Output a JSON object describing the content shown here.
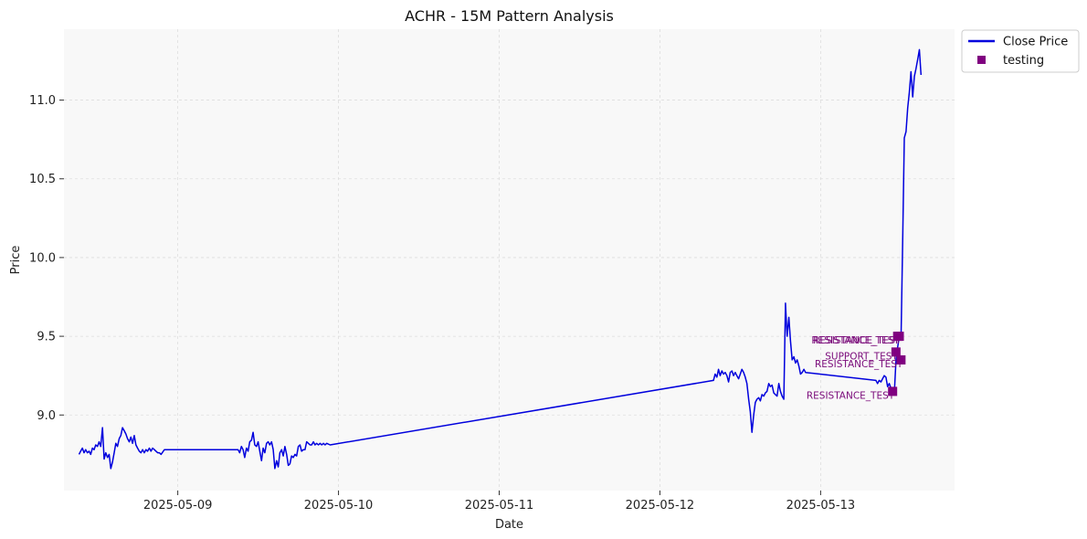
{
  "chart_data": {
    "type": "line",
    "title": "ACHR - 15M Pattern Analysis",
    "xlabel": "Date",
    "ylabel": "Price",
    "xlim": [
      "2025-05-08 07:00",
      "2025-05-13 20:00"
    ],
    "ylim": [
      8.52,
      11.45
    ],
    "x_ticks": [
      "2025-05-09",
      "2025-05-10",
      "2025-05-11",
      "2025-05-12",
      "2025-05-13"
    ],
    "y_ticks": [
      9.0,
      9.5,
      10.0,
      10.5,
      11.0
    ],
    "y_tick_labels": [
      "9.0",
      "9.5",
      "10.0",
      "10.5",
      "11.0"
    ],
    "grid": true,
    "legend_position": "upper-right-outside",
    "colors": {
      "line": "#0000dd",
      "marker": "#800080",
      "annotation": "#7a0a7a",
      "plot_bg": "#f8f8f8",
      "grid": "#dddddd"
    },
    "series": [
      {
        "name": "Close Price",
        "type": "line",
        "points": [
          [
            "2025-05-08 09:15",
            8.75
          ],
          [
            "2025-05-08 09:30",
            8.77
          ],
          [
            "2025-05-08 09:45",
            8.79
          ],
          [
            "2025-05-08 10:00",
            8.76
          ],
          [
            "2025-05-08 10:15",
            8.78
          ],
          [
            "2025-05-08 10:30",
            8.76
          ],
          [
            "2025-05-08 10:45",
            8.77
          ],
          [
            "2025-05-08 11:00",
            8.75
          ],
          [
            "2025-05-08 11:15",
            8.79
          ],
          [
            "2025-05-08 11:30",
            8.78
          ],
          [
            "2025-05-08 11:45",
            8.81
          ],
          [
            "2025-05-08 12:00",
            8.8
          ],
          [
            "2025-05-08 12:15",
            8.83
          ],
          [
            "2025-05-08 12:30",
            8.8
          ],
          [
            "2025-05-08 12:45",
            8.92
          ],
          [
            "2025-05-08 13:00",
            8.72
          ],
          [
            "2025-05-08 13:15",
            8.76
          ],
          [
            "2025-05-08 13:30",
            8.73
          ],
          [
            "2025-05-08 13:45",
            8.75
          ],
          [
            "2025-05-08 14:00",
            8.66
          ],
          [
            "2025-05-08 14:15",
            8.7
          ],
          [
            "2025-05-08 14:30",
            8.76
          ],
          [
            "2025-05-08 14:45",
            8.82
          ],
          [
            "2025-05-08 15:00",
            8.8
          ],
          [
            "2025-05-08 15:15",
            8.85
          ],
          [
            "2025-05-08 15:30",
            8.87
          ],
          [
            "2025-05-08 15:45",
            8.92
          ],
          [
            "2025-05-08 16:00",
            8.9
          ],
          [
            "2025-05-08 16:15",
            8.88
          ],
          [
            "2025-05-08 16:30",
            8.85
          ],
          [
            "2025-05-08 16:45",
            8.83
          ],
          [
            "2025-05-08 17:00",
            8.86
          ],
          [
            "2025-05-08 17:15",
            8.82
          ],
          [
            "2025-05-08 17:30",
            8.87
          ],
          [
            "2025-05-08 17:45",
            8.81
          ],
          [
            "2025-05-08 18:00",
            8.79
          ],
          [
            "2025-05-08 18:15",
            8.77
          ],
          [
            "2025-05-08 18:30",
            8.76
          ],
          [
            "2025-05-08 18:45",
            8.78
          ],
          [
            "2025-05-08 19:00",
            8.76
          ],
          [
            "2025-05-08 19:15",
            8.78
          ],
          [
            "2025-05-08 19:30",
            8.77
          ],
          [
            "2025-05-08 19:45",
            8.79
          ],
          [
            "2025-05-08 20:00",
            8.77
          ],
          [
            "2025-05-08 20:15",
            8.79
          ],
          [
            "2025-05-08 20:30",
            8.78
          ],
          [
            "2025-05-08 20:45",
            8.77
          ],
          [
            "2025-05-08 21:00",
            8.76
          ],
          [
            "2025-05-08 21:15",
            8.76
          ],
          [
            "2025-05-08 21:30",
            8.75
          ],
          [
            "2025-05-08 22:00",
            8.78
          ],
          [
            "2025-05-09 09:00",
            8.78
          ],
          [
            "2025-05-09 09:15",
            8.76
          ],
          [
            "2025-05-09 09:30",
            8.8
          ],
          [
            "2025-05-09 09:45",
            8.78
          ],
          [
            "2025-05-09 10:00",
            8.73
          ],
          [
            "2025-05-09 10:15",
            8.79
          ],
          [
            "2025-05-09 10:30",
            8.77
          ],
          [
            "2025-05-09 10:45",
            8.83
          ],
          [
            "2025-05-09 11:00",
            8.84
          ],
          [
            "2025-05-09 11:15",
            8.89
          ],
          [
            "2025-05-09 11:30",
            8.81
          ],
          [
            "2025-05-09 11:45",
            8.8
          ],
          [
            "2025-05-09 12:00",
            8.83
          ],
          [
            "2025-05-09 12:15",
            8.77
          ],
          [
            "2025-05-09 12:30",
            8.71
          ],
          [
            "2025-05-09 12:45",
            8.79
          ],
          [
            "2025-05-09 13:00",
            8.76
          ],
          [
            "2025-05-09 13:15",
            8.82
          ],
          [
            "2025-05-09 13:30",
            8.83
          ],
          [
            "2025-05-09 13:45",
            8.81
          ],
          [
            "2025-05-09 14:00",
            8.83
          ],
          [
            "2025-05-09 14:15",
            8.78
          ],
          [
            "2025-05-09 14:30",
            8.66
          ],
          [
            "2025-05-09 14:45",
            8.71
          ],
          [
            "2025-05-09 15:00",
            8.67
          ],
          [
            "2025-05-09 15:15",
            8.76
          ],
          [
            "2025-05-09 15:30",
            8.78
          ],
          [
            "2025-05-09 15:45",
            8.74
          ],
          [
            "2025-05-09 16:00",
            8.8
          ],
          [
            "2025-05-09 16:15",
            8.75
          ],
          [
            "2025-05-09 16:30",
            8.68
          ],
          [
            "2025-05-09 16:45",
            8.69
          ],
          [
            "2025-05-09 17:00",
            8.74
          ],
          [
            "2025-05-09 17:15",
            8.73
          ],
          [
            "2025-05-09 17:30",
            8.75
          ],
          [
            "2025-05-09 17:45",
            8.74
          ],
          [
            "2025-05-09 18:00",
            8.8
          ],
          [
            "2025-05-09 18:15",
            8.81
          ],
          [
            "2025-05-09 18:30",
            8.77
          ],
          [
            "2025-05-09 18:45",
            8.78
          ],
          [
            "2025-05-09 19:00",
            8.78
          ],
          [
            "2025-05-09 19:15",
            8.83
          ],
          [
            "2025-05-09 19:30",
            8.82
          ],
          [
            "2025-05-09 19:45",
            8.81
          ],
          [
            "2025-05-09 20:00",
            8.81
          ],
          [
            "2025-05-09 20:15",
            8.83
          ],
          [
            "2025-05-09 20:30",
            8.81
          ],
          [
            "2025-05-09 20:45",
            8.82
          ],
          [
            "2025-05-09 21:00",
            8.81
          ],
          [
            "2025-05-09 21:15",
            8.82
          ],
          [
            "2025-05-09 21:30",
            8.81
          ],
          [
            "2025-05-09 21:45",
            8.82
          ],
          [
            "2025-05-09 22:00",
            8.81
          ],
          [
            "2025-05-09 22:15",
            8.82
          ],
          [
            "2025-05-09 22:45",
            8.81
          ],
          [
            "2025-05-12 08:00",
            9.22
          ],
          [
            "2025-05-12 08:15",
            9.26
          ],
          [
            "2025-05-12 08:30",
            9.24
          ],
          [
            "2025-05-12 08:45",
            9.29
          ],
          [
            "2025-05-12 09:00",
            9.25
          ],
          [
            "2025-05-12 09:15",
            9.28
          ],
          [
            "2025-05-12 09:30",
            9.26
          ],
          [
            "2025-05-12 09:45",
            9.27
          ],
          [
            "2025-05-12 10:00",
            9.25
          ],
          [
            "2025-05-12 10:15",
            9.21
          ],
          [
            "2025-05-12 10:30",
            9.27
          ],
          [
            "2025-05-12 10:45",
            9.28
          ],
          [
            "2025-05-12 11:00",
            9.25
          ],
          [
            "2025-05-12 11:15",
            9.27
          ],
          [
            "2025-05-12 11:30",
            9.25
          ],
          [
            "2025-05-12 11:45",
            9.23
          ],
          [
            "2025-05-12 12:00",
            9.26
          ],
          [
            "2025-05-12 12:15",
            9.29
          ],
          [
            "2025-05-12 12:30",
            9.27
          ],
          [
            "2025-05-12 12:45",
            9.24
          ],
          [
            "2025-05-12 13:00",
            9.2
          ],
          [
            "2025-05-12 13:15",
            9.1
          ],
          [
            "2025-05-12 13:30",
            9.02
          ],
          [
            "2025-05-12 13:45",
            8.89
          ],
          [
            "2025-05-12 14:00",
            9.0
          ],
          [
            "2025-05-12 14:15",
            9.08
          ],
          [
            "2025-05-12 14:30",
            9.1
          ],
          [
            "2025-05-12 14:45",
            9.11
          ],
          [
            "2025-05-12 15:00",
            9.09
          ],
          [
            "2025-05-12 15:15",
            9.13
          ],
          [
            "2025-05-12 15:30",
            9.12
          ],
          [
            "2025-05-12 15:45",
            9.14
          ],
          [
            "2025-05-12 16:00",
            9.15
          ],
          [
            "2025-05-12 16:15",
            9.2
          ],
          [
            "2025-05-12 16:30",
            9.18
          ],
          [
            "2025-05-12 16:45",
            9.19
          ],
          [
            "2025-05-12 17:00",
            9.14
          ],
          [
            "2025-05-12 17:15",
            9.13
          ],
          [
            "2025-05-12 17:30",
            9.12
          ],
          [
            "2025-05-12 17:45",
            9.2
          ],
          [
            "2025-05-12 18:00",
            9.15
          ],
          [
            "2025-05-12 18:15",
            9.12
          ],
          [
            "2025-05-12 18:30",
            9.1
          ],
          [
            "2025-05-12 18:45",
            9.71
          ],
          [
            "2025-05-12 19:00",
            9.5
          ],
          [
            "2025-05-12 19:15",
            9.62
          ],
          [
            "2025-05-12 19:30",
            9.47
          ],
          [
            "2025-05-12 19:45",
            9.35
          ],
          [
            "2025-05-12 20:00",
            9.37
          ],
          [
            "2025-05-12 20:15",
            9.33
          ],
          [
            "2025-05-12 20:30",
            9.35
          ],
          [
            "2025-05-12 20:45",
            9.31
          ],
          [
            "2025-05-12 21:00",
            9.26
          ],
          [
            "2025-05-12 21:15",
            9.27
          ],
          [
            "2025-05-12 21:30",
            9.29
          ],
          [
            "2025-05-12 21:45",
            9.27
          ],
          [
            "2025-05-13 08:15",
            9.22
          ],
          [
            "2025-05-13 08:30",
            9.2
          ],
          [
            "2025-05-13 08:45",
            9.22
          ],
          [
            "2025-05-13 09:00",
            9.21
          ],
          [
            "2025-05-13 09:15",
            9.23
          ],
          [
            "2025-05-13 09:30",
            9.25
          ],
          [
            "2025-05-13 09:45",
            9.24
          ],
          [
            "2025-05-13 10:00",
            9.18
          ],
          [
            "2025-05-13 10:15",
            9.2
          ],
          [
            "2025-05-13 10:30",
            9.17
          ],
          [
            "2025-05-13 10:45",
            9.15
          ],
          [
            "2025-05-13 11:00",
            9.13
          ],
          [
            "2025-05-13 11:15",
            9.35
          ],
          [
            "2025-05-13 11:30",
            9.43
          ],
          [
            "2025-05-13 11:45",
            9.5
          ],
          [
            "2025-05-13 12:00",
            9.48
          ],
          [
            "2025-05-13 12:15",
            10.1
          ],
          [
            "2025-05-13 12:30",
            10.76
          ],
          [
            "2025-05-13 12:45",
            10.8
          ],
          [
            "2025-05-13 13:00",
            10.95
          ],
          [
            "2025-05-13 13:15",
            11.05
          ],
          [
            "2025-05-13 13:30",
            11.18
          ],
          [
            "2025-05-13 13:45",
            11.02
          ],
          [
            "2025-05-13 14:00",
            11.15
          ],
          [
            "2025-05-13 14:15",
            11.2
          ],
          [
            "2025-05-13 14:30",
            11.26
          ],
          [
            "2025-05-13 14:45",
            11.32
          ],
          [
            "2025-05-13 15:00",
            11.16
          ]
        ]
      },
      {
        "name": "testing",
        "type": "scatter",
        "marker": "square",
        "points": [
          {
            "x": "2025-05-13 10:45",
            "y": 9.15,
            "label": "RESISTANCE_TEST"
          },
          {
            "x": "2025-05-13 11:15",
            "y": 9.4,
            "label": "SUPPORT_TEST"
          },
          {
            "x": "2025-05-13 11:30",
            "y": 9.5,
            "label": "RESISTANCE_TEST"
          },
          {
            "x": "2025-05-13 11:45",
            "y": 9.5,
            "label": "RESISTANCE_TEST"
          },
          {
            "x": "2025-05-13 12:00",
            "y": 9.35,
            "label": "RESISTANCE_TEST"
          }
        ]
      }
    ]
  }
}
